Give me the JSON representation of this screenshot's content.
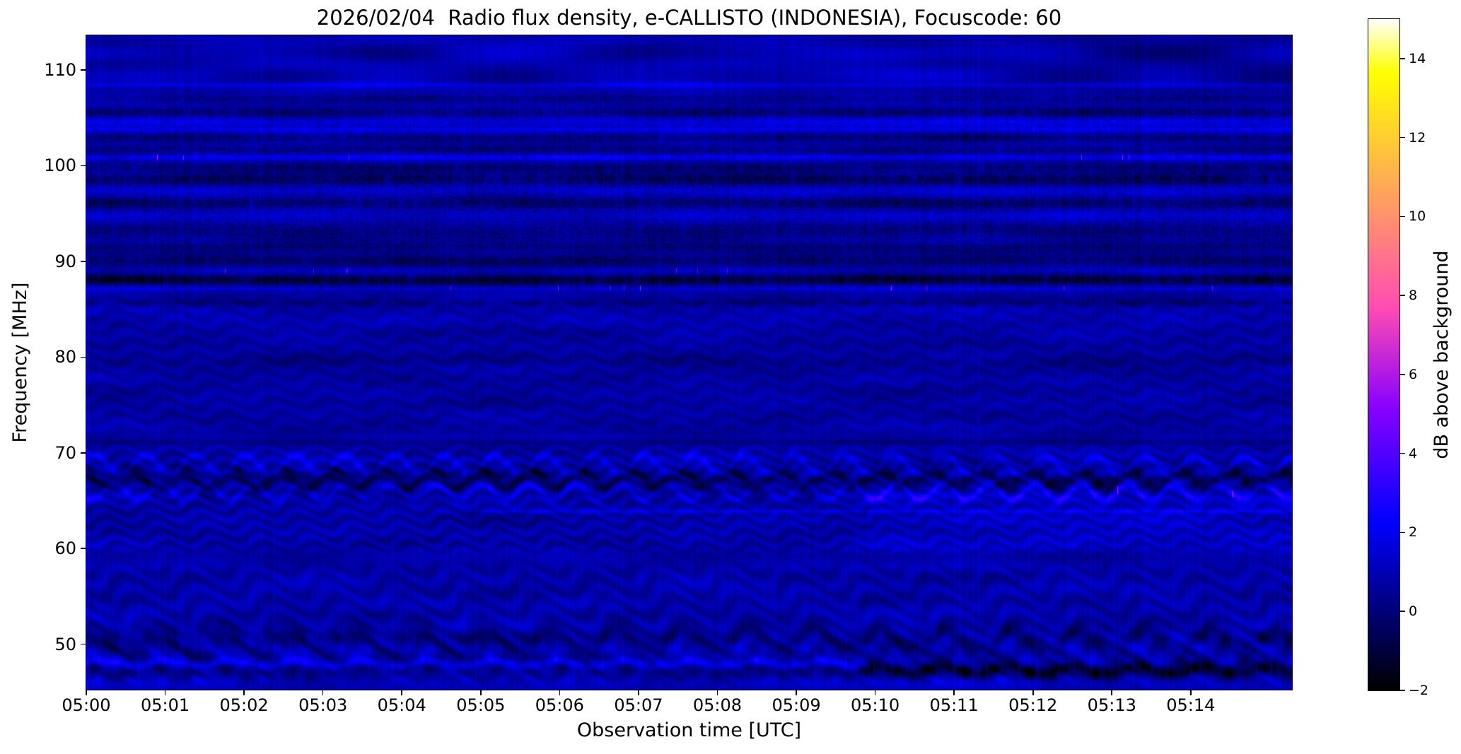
{
  "chart_data": {
    "type": "heatmap",
    "subtype": "radio-spectrogram",
    "title": "2026/02/04  Radio flux density, e-CALLISTO (INDONESIA), Focuscode: 60",
    "xlabel": "Observation time [UTC]",
    "ylabel": "Frequency [MHz]",
    "x_range_seconds": [
      0,
      917
    ],
    "y_range_mhz": [
      45.25,
      113.62
    ],
    "x_ticks": {
      "labels": [
        "05:00",
        "05:01",
        "05:02",
        "05:03",
        "05:04",
        "05:05",
        "05:06",
        "05:07",
        "05:08",
        "05:09",
        "05:10",
        "05:11",
        "05:12",
        "05:13",
        "05:14"
      ],
      "seconds": [
        0,
        60,
        120,
        180,
        240,
        300,
        360,
        420,
        480,
        540,
        600,
        660,
        720,
        780,
        840
      ]
    },
    "y_ticks": {
      "labels": [
        "110",
        "100",
        "90",
        "80",
        "70",
        "60",
        "50"
      ],
      "mhz": [
        110,
        100,
        90,
        80,
        70,
        60,
        50
      ]
    },
    "colorbar": {
      "label": "dB above background",
      "range": [
        -2,
        15
      ],
      "colormap": "gnuplot2",
      "ticks": {
        "labels": [
          "14",
          "12",
          "10",
          "8",
          "6",
          "4",
          "2",
          "0",
          "−2"
        ],
        "values": [
          14,
          12,
          10,
          8,
          6,
          4,
          2,
          0,
          -2
        ]
      }
    },
    "grid": false,
    "legend": "none",
    "texture": {
      "seed": 7,
      "base_db": 0.75,
      "base_bands": [
        [
          107.8,
          113.62,
          0.15
        ],
        [
          99.5,
          107.8,
          0.1
        ],
        [
          91.8,
          99.5,
          0.05
        ],
        [
          88.8,
          91.8,
          -0.25
        ],
        [
          87.0,
          88.8,
          -0.1
        ],
        [
          72.0,
          87.0,
          -0.1
        ],
        [
          59.0,
          72.0,
          0.0
        ],
        [
          52.0,
          59.0,
          0.05
        ],
        [
          45.25,
          52.0,
          0.05
        ]
      ],
      "speckle_bands": [
        [
          45.25,
          52.0,
          0.65
        ],
        [
          52.0,
          59.0,
          0.5
        ],
        [
          59.0,
          67.5,
          0.6
        ],
        [
          67.5,
          87.0,
          0.45
        ],
        [
          87.0,
          91.8,
          0.85
        ],
        [
          91.8,
          99.5,
          1.15
        ],
        [
          99.5,
          107.8,
          0.95
        ],
        [
          107.8,
          113.62,
          0.5
        ]
      ],
      "stripe_bands": [
        [
          45.25,
          62.0,
          0.95
        ],
        [
          62.0,
          87.0,
          0.7
        ],
        [
          87.0,
          108.0,
          0.85
        ],
        [
          108.0,
          113.62,
          0.9
        ]
      ],
      "lines": [
        [
          108.45,
          0.85,
          0.25,
          0.3,
          0,
          0
        ],
        [
          107.0,
          -0.5,
          0.4,
          0.7,
          0,
          0
        ],
        [
          105.6,
          -0.85,
          0.5,
          0.8,
          0,
          0
        ],
        [
          104.6,
          0.85,
          0.45,
          0.55,
          0,
          0
        ],
        [
          103.8,
          0.9,
          0.3,
          0.6,
          0,
          0
        ],
        [
          102.9,
          -0.8,
          0.4,
          0.75,
          0,
          0
        ],
        [
          101.7,
          -0.6,
          0.5,
          0.8,
          0,
          0
        ],
        [
          100.9,
          1.15,
          0.3,
          0.5,
          0,
          0.004
        ],
        [
          99.8,
          -0.9,
          0.5,
          0.85,
          0,
          0
        ],
        [
          98.6,
          -1.15,
          0.6,
          0.85,
          0,
          0
        ],
        [
          97.4,
          0.55,
          0.5,
          0.7,
          0,
          0
        ],
        [
          96.1,
          -0.95,
          0.55,
          0.85,
          0,
          0
        ],
        [
          94.8,
          0.45,
          0.6,
          0.7,
          0,
          0
        ],
        [
          93.2,
          -0.65,
          0.8,
          0.8,
          0,
          0
        ],
        [
          91.6,
          -0.5,
          0.7,
          0.6,
          0,
          0
        ],
        [
          90.1,
          -0.75,
          0.5,
          0.8,
          0,
          0
        ],
        [
          89.0,
          0.6,
          0.35,
          0.7,
          0,
          0.002
        ],
        [
          88.1,
          -1.6,
          0.55,
          0.6,
          0,
          0
        ],
        [
          87.2,
          0.8,
          0.3,
          0.5,
          0,
          0.003
        ],
        [
          85.7,
          -0.6,
          0.4,
          0.8,
          0,
          0
        ],
        [
          84.3,
          0.3,
          1.2,
          0.2,
          0,
          0
        ],
        [
          79.6,
          -0.35,
          0.7,
          0.3,
          0,
          0
        ],
        [
          71.1,
          -0.6,
          0.3,
          0.2,
          0,
          0
        ],
        [
          63.9,
          0.95,
          0.2,
          0.25,
          290,
          0
        ],
        [
          46.0,
          0.45,
          0.7,
          0.2,
          0,
          0
        ]
      ],
      "wavy_lines": [
        {
          "f": 68.8,
          "a": 1.15,
          "w": 0.5,
          "wob": 0.95,
          "p": 38,
          "ph": 0.5
        },
        {
          "f": 67.3,
          "a": -1.5,
          "w": 0.8,
          "wob": 0.85,
          "p": 38,
          "ph": 2.2
        },
        {
          "f": 65.9,
          "a": 1.05,
          "w": 0.45,
          "wob": 0.8,
          "p": 35,
          "ph": 4.0,
          "right_boost": 0.55,
          "spark_right": 0.004
        },
        {
          "f": 50.3,
          "a": -0.95,
          "w": 0.9,
          "wob": 1.25,
          "p": 50,
          "ph": 1.0
        },
        {
          "f": 48.9,
          "a": 0.5,
          "w": 0.5,
          "wob": 0.9,
          "p": 50,
          "ph": 2.6
        },
        {
          "f": 48.0,
          "a": 1.35,
          "w": 0.45,
          "wob": 0.3,
          "p": 50,
          "ph": 0.3,
          "fade_right": true
        },
        {
          "f": 47.3,
          "a": -0.8,
          "w": 0.7,
          "wob": 0.35,
          "p": 50,
          "ph": 1.5,
          "right_mult": 2.1,
          "right_blob": 1.3
        }
      ],
      "fringe_fields": [
        {
          "fmin": 71.5,
          "fmax": 87.0,
          "spacing": 1.55,
          "amp": 0.26,
          "wob": 2.2,
          "p": 42,
          "ph": 0.8,
          "fk": 0.6
        },
        {
          "fmin": 59.0,
          "fmax": 71.5,
          "spacing": 1.35,
          "amp": 0.4,
          "wob": 2.6,
          "p": 37,
          "ph": 2.0,
          "fk": 0.6
        },
        {
          "fmin": 45.25,
          "fmax": 59.0,
          "spacing": 2.2,
          "amp": 0.36,
          "wob": 3.0,
          "p": 51,
          "ph": 4.1,
          "fk": 0.5
        },
        {
          "fmin": 45.25,
          "fmax": 52.5,
          "spacing": 3.8,
          "amp": 0.28,
          "wob": 2.4,
          "p": 47,
          "ph": 1.2,
          "fk": 0.35
        }
      ],
      "right_wash": {
        "fmin": 59.0,
        "fmax": 66.6,
        "amp": 0.45
      },
      "top_dark_right": {
        "fmin": 106.5,
        "amp": -0.4,
        "start_s": 680,
        "ramp_s": 90
      },
      "top_bright_patch": {
        "t_s": 600,
        "f": 110.3,
        "sigma_t_s": 45,
        "sigma_f": 1.3,
        "amp": 0.55
      },
      "transition_s": 577,
      "transition_ramp_s": 25,
      "mottle_amp": 0.18,
      "top_mottle_amp": 0.4,
      "top_mottle_fmin": 107.8
    }
  }
}
